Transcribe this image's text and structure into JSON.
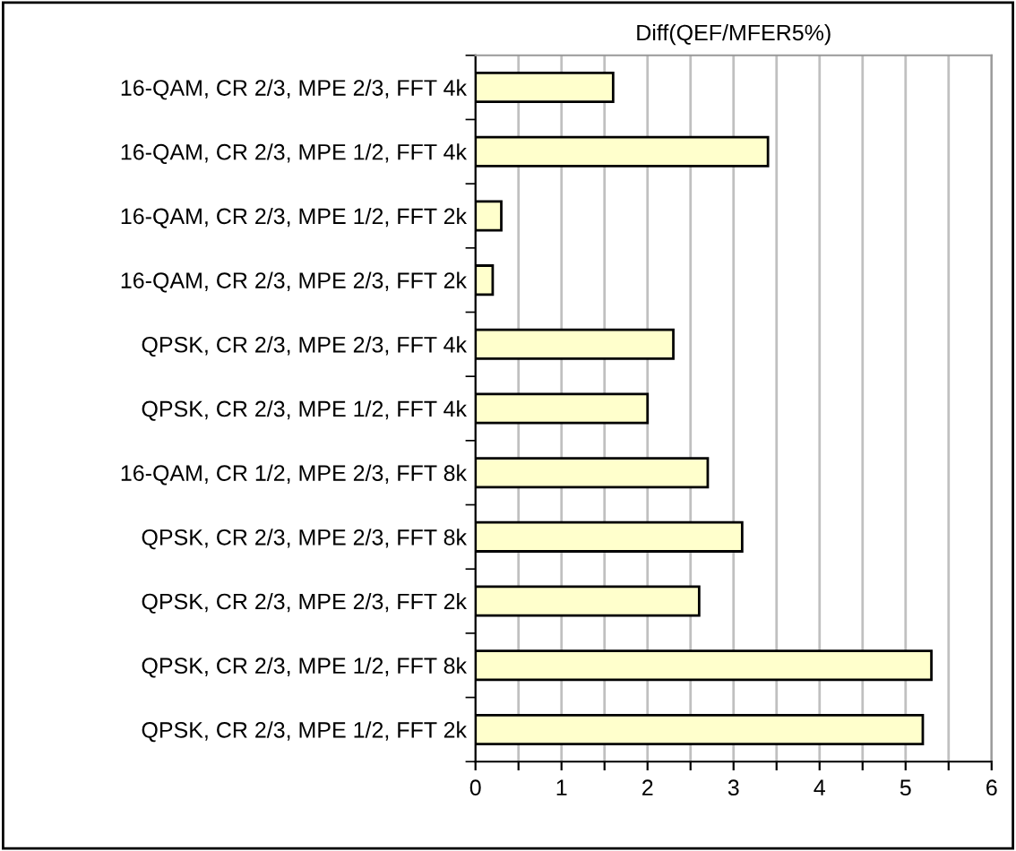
{
  "chart_data": {
    "type": "bar",
    "orientation": "horizontal",
    "title": "Diff(QEF/MFER5%)",
    "categories": [
      "16-QAM, CR 2/3, MPE 2/3, FFT 4k",
      "16-QAM, CR 2/3, MPE 1/2, FFT 4k",
      "16-QAM, CR 2/3, MPE 1/2, FFT 2k",
      "16-QAM, CR 2/3, MPE 2/3, FFT 2k",
      "QPSK, CR 2/3, MPE 2/3, FFT 4k",
      "QPSK, CR 2/3, MPE 1/2, FFT 4k",
      "16-QAM, CR 1/2, MPE 2/3, FFT 8k",
      "QPSK, CR 2/3, MPE 2/3, FFT 8k",
      "QPSK, CR 2/3, MPE 2/3, FFT 2k",
      "QPSK, CR 2/3, MPE 1/2, FFT 8k",
      "QPSK, CR 2/3, MPE 1/2, FFT 2k"
    ],
    "values": [
      1.6,
      3.4,
      0.3,
      0.2,
      2.3,
      2.0,
      2.7,
      3.1,
      2.6,
      5.3,
      5.2
    ],
    "color": "#ffffcc",
    "xlim": [
      0,
      6
    ],
    "xticks": [
      0,
      {
        "value": 0.5,
        "label": null
      },
      1,
      {
        "value": 1.5,
        "label": null
      },
      2,
      {
        "value": 2.5,
        "label": null
      },
      3,
      {
        "value": 3.5,
        "label": null
      },
      4,
      {
        "value": 4.5,
        "label": null
      },
      5,
      {
        "value": 5.5,
        "label": null
      },
      6
    ],
    "grid": "x"
  }
}
